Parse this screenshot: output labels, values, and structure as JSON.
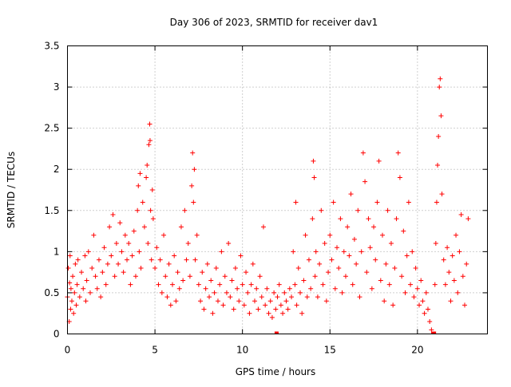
{
  "chart_data": {
    "type": "scatter",
    "title": "Day 306 of 2023, SRMTID for receiver dav1",
    "xlabel": "GPS time / hours",
    "ylabel": "SRMTID / TECUs",
    "xlim": [
      0,
      24
    ],
    "ylim": [
      0,
      3.5
    ],
    "xticks": [
      0,
      5,
      10,
      15,
      20
    ],
    "xtick_labels": [
      "0",
      "5",
      "10",
      "15",
      "20"
    ],
    "yticks": [
      0,
      0.5,
      1,
      1.5,
      2,
      2.5,
      3,
      3.5
    ],
    "ytick_labels": [
      "0",
      "0.5",
      "1",
      "1.5",
      "2",
      "2.5",
      "3",
      "3.5"
    ],
    "grid": true,
    "marker": "+",
    "color": "#ff0000",
    "series": [
      {
        "name": "dav1",
        "points": [
          [
            0.0,
            0.45
          ],
          [
            0.05,
            0.8
          ],
          [
            0.1,
            0.15
          ],
          [
            0.12,
            0.62
          ],
          [
            0.15,
            0.95
          ],
          [
            0.18,
            0.3
          ],
          [
            0.2,
            0.55
          ],
          [
            0.25,
            0.4
          ],
          [
            0.3,
            0.7
          ],
          [
            0.35,
            0.25
          ],
          [
            0.4,
            0.5
          ],
          [
            0.45,
            0.85
          ],
          [
            0.5,
            0.35
          ],
          [
            0.55,
            0.6
          ],
          [
            0.6,
            0.9
          ],
          [
            0.7,
            0.45
          ],
          [
            0.8,
            0.75
          ],
          [
            0.9,
            0.55
          ],
          [
            1.0,
            0.95
          ],
          [
            1.05,
            0.4
          ],
          [
            1.1,
            0.65
          ],
          [
            1.2,
            1.0
          ],
          [
            1.3,
            0.5
          ],
          [
            1.4,
            0.8
          ],
          [
            1.5,
            1.2
          ],
          [
            1.6,
            0.7
          ],
          [
            1.7,
            0.55
          ],
          [
            1.8,
            0.9
          ],
          [
            1.9,
            0.45
          ],
          [
            2.0,
            0.75
          ],
          [
            2.1,
            1.05
          ],
          [
            2.2,
            0.6
          ],
          [
            2.3,
            0.85
          ],
          [
            2.4,
            1.3
          ],
          [
            2.5,
            0.95
          ],
          [
            2.6,
            1.45
          ],
          [
            2.7,
            0.7
          ],
          [
            2.8,
            1.1
          ],
          [
            2.9,
            0.85
          ],
          [
            3.0,
            1.35
          ],
          [
            3.1,
            1.0
          ],
          [
            3.2,
            0.75
          ],
          [
            3.3,
            1.2
          ],
          [
            3.4,
            0.9
          ],
          [
            3.5,
            1.1
          ],
          [
            3.6,
            0.6
          ],
          [
            3.7,
            0.95
          ],
          [
            3.8,
            1.25
          ],
          [
            3.9,
            0.7
          ],
          [
            4.0,
            1.5
          ],
          [
            4.05,
            1.8
          ],
          [
            4.1,
            1.0
          ],
          [
            4.15,
            1.95
          ],
          [
            4.2,
            0.8
          ],
          [
            4.3,
            1.6
          ],
          [
            4.4,
            1.3
          ],
          [
            4.5,
            1.9
          ],
          [
            4.55,
            2.05
          ],
          [
            4.6,
            1.1
          ],
          [
            4.65,
            2.3
          ],
          [
            4.7,
            2.55
          ],
          [
            4.72,
            2.35
          ],
          [
            4.75,
            1.5
          ],
          [
            4.8,
            0.9
          ],
          [
            4.85,
            1.75
          ],
          [
            4.9,
            1.4
          ],
          [
            5.0,
            0.8
          ],
          [
            5.1,
            1.05
          ],
          [
            5.2,
            0.6
          ],
          [
            5.3,
            0.9
          ],
          [
            5.4,
            0.5
          ],
          [
            5.5,
            1.2
          ],
          [
            5.6,
            0.7
          ],
          [
            5.7,
            0.45
          ],
          [
            5.8,
            0.85
          ],
          [
            5.9,
            0.35
          ],
          [
            6.0,
            0.6
          ],
          [
            6.1,
            0.95
          ],
          [
            6.2,
            0.4
          ],
          [
            6.3,
            0.75
          ],
          [
            6.4,
            0.55
          ],
          [
            6.5,
            1.3
          ],
          [
            6.6,
            0.65
          ],
          [
            6.7,
            1.5
          ],
          [
            6.8,
            0.9
          ],
          [
            6.9,
            1.1
          ],
          [
            7.0,
            0.7
          ],
          [
            7.1,
            1.8
          ],
          [
            7.15,
            2.2
          ],
          [
            7.2,
            1.6
          ],
          [
            7.25,
            2.0
          ],
          [
            7.3,
            0.9
          ],
          [
            7.4,
            1.2
          ],
          [
            7.5,
            0.6
          ],
          [
            7.6,
            0.4
          ],
          [
            7.7,
            0.75
          ],
          [
            7.8,
            0.3
          ],
          [
            7.9,
            0.55
          ],
          [
            8.0,
            0.85
          ],
          [
            8.1,
            0.45
          ],
          [
            8.2,
            0.65
          ],
          [
            8.3,
            0.25
          ],
          [
            8.4,
            0.5
          ],
          [
            8.5,
            0.8
          ],
          [
            8.6,
            0.4
          ],
          [
            8.7,
            0.6
          ],
          [
            8.8,
            1.0
          ],
          [
            8.9,
            0.35
          ],
          [
            9.0,
            0.7
          ],
          [
            9.1,
            0.5
          ],
          [
            9.2,
            1.1
          ],
          [
            9.3,
            0.45
          ],
          [
            9.4,
            0.65
          ],
          [
            9.5,
            0.3
          ],
          [
            9.6,
            0.8
          ],
          [
            9.7,
            0.55
          ],
          [
            9.8,
            0.4
          ],
          [
            9.9,
            0.95
          ],
          [
            10.0,
            0.6
          ],
          [
            10.1,
            0.35
          ],
          [
            10.2,
            0.75
          ],
          [
            10.3,
            0.5
          ],
          [
            10.4,
            0.25
          ],
          [
            10.5,
            0.6
          ],
          [
            10.6,
            0.85
          ],
          [
            10.7,
            0.4
          ],
          [
            10.8,
            0.55
          ],
          [
            10.9,
            0.3
          ],
          [
            11.0,
            0.7
          ],
          [
            11.1,
            0.45
          ],
          [
            11.2,
            1.3
          ],
          [
            11.3,
            0.35
          ],
          [
            11.4,
            0.55
          ],
          [
            11.5,
            0.25
          ],
          [
            11.6,
            0.4
          ],
          [
            11.7,
            0.2
          ],
          [
            11.8,
            0.5
          ],
          [
            11.9,
            0.3
          ],
          [
            12.0,
            0.45
          ],
          [
            12.1,
            0.6
          ],
          [
            12.2,
            0.35
          ],
          [
            12.3,
            0.25
          ],
          [
            12.4,
            0.5
          ],
          [
            12.5,
            0.4
          ],
          [
            12.6,
            0.3
          ],
          [
            12.7,
            0.55
          ],
          [
            12.8,
            0.45
          ],
          [
            12.9,
            1.0
          ],
          [
            13.0,
            0.6
          ],
          [
            13.05,
            1.6
          ],
          [
            13.1,
            0.35
          ],
          [
            13.2,
            0.8
          ],
          [
            13.3,
            0.5
          ],
          [
            13.4,
            0.25
          ],
          [
            13.5,
            0.65
          ],
          [
            13.6,
            1.2
          ],
          [
            13.7,
            0.45
          ],
          [
            13.8,
            0.9
          ],
          [
            13.9,
            0.55
          ],
          [
            14.0,
            1.4
          ],
          [
            14.05,
            2.1
          ],
          [
            14.1,
            1.9
          ],
          [
            14.15,
            0.7
          ],
          [
            14.2,
            1.0
          ],
          [
            14.3,
            0.45
          ],
          [
            14.4,
            0.85
          ],
          [
            14.5,
            1.5
          ],
          [
            14.6,
            0.6
          ],
          [
            14.7,
            1.1
          ],
          [
            14.8,
            0.4
          ],
          [
            14.9,
            0.75
          ],
          [
            15.0,
            1.2
          ],
          [
            15.1,
            0.9
          ],
          [
            15.2,
            1.6
          ],
          [
            15.3,
            0.55
          ],
          [
            15.4,
            1.05
          ],
          [
            15.5,
            0.8
          ],
          [
            15.6,
            1.4
          ],
          [
            15.7,
            0.5
          ],
          [
            15.8,
            1.0
          ],
          [
            15.9,
            0.7
          ],
          [
            16.0,
            1.3
          ],
          [
            16.1,
            0.95
          ],
          [
            16.2,
            1.7
          ],
          [
            16.3,
            0.6
          ],
          [
            16.4,
            1.15
          ],
          [
            16.5,
            0.85
          ],
          [
            16.6,
            1.5
          ],
          [
            16.7,
            0.45
          ],
          [
            16.8,
            1.0
          ],
          [
            16.9,
            2.2
          ],
          [
            17.0,
            1.85
          ],
          [
            17.1,
            0.75
          ],
          [
            17.2,
            1.4
          ],
          [
            17.3,
            1.05
          ],
          [
            17.4,
            0.55
          ],
          [
            17.5,
            1.3
          ],
          [
            17.6,
            0.9
          ],
          [
            17.7,
            1.6
          ],
          [
            17.8,
            2.1
          ],
          [
            17.9,
            0.65
          ],
          [
            18.0,
            1.2
          ],
          [
            18.1,
            0.4
          ],
          [
            18.2,
            0.85
          ],
          [
            18.3,
            1.5
          ],
          [
            18.4,
            0.6
          ],
          [
            18.5,
            1.1
          ],
          [
            18.6,
            0.35
          ],
          [
            18.7,
            0.8
          ],
          [
            18.8,
            1.4
          ],
          [
            18.9,
            2.2
          ],
          [
            19.0,
            1.9
          ],
          [
            19.1,
            0.7
          ],
          [
            19.2,
            1.25
          ],
          [
            19.3,
            0.5
          ],
          [
            19.4,
            0.95
          ],
          [
            19.5,
            1.6
          ],
          [
            19.6,
            0.6
          ],
          [
            19.7,
            1.0
          ],
          [
            19.8,
            0.45
          ],
          [
            19.9,
            0.8
          ],
          [
            20.0,
            0.55
          ],
          [
            20.1,
            0.35
          ],
          [
            20.2,
            0.65
          ],
          [
            20.3,
            0.4
          ],
          [
            20.4,
            0.25
          ],
          [
            20.5,
            0.5
          ],
          [
            20.6,
            0.3
          ],
          [
            20.7,
            0.15
          ],
          [
            20.8,
            0.05
          ],
          [
            20.9,
            0.0
          ],
          [
            21.0,
            0.6
          ],
          [
            21.05,
            1.1
          ],
          [
            21.1,
            1.6
          ],
          [
            21.15,
            2.05
          ],
          [
            21.2,
            2.4
          ],
          [
            21.25,
            3.0
          ],
          [
            21.3,
            3.1
          ],
          [
            21.35,
            2.65
          ],
          [
            21.4,
            1.7
          ],
          [
            21.5,
            0.9
          ],
          [
            21.6,
            0.6
          ],
          [
            21.7,
            1.05
          ],
          [
            21.8,
            0.75
          ],
          [
            21.9,
            0.4
          ],
          [
            22.0,
            0.95
          ],
          [
            22.1,
            0.65
          ],
          [
            22.2,
            1.2
          ],
          [
            22.3,
            0.5
          ],
          [
            22.4,
            1.0
          ],
          [
            22.5,
            1.45
          ],
          [
            22.6,
            0.7
          ],
          [
            22.7,
            0.35
          ],
          [
            22.8,
            0.85
          ],
          [
            22.9,
            1.4
          ],
          [
            11.95,
            0.0
          ],
          [
            20.95,
            0.0
          ]
        ]
      }
    ]
  }
}
